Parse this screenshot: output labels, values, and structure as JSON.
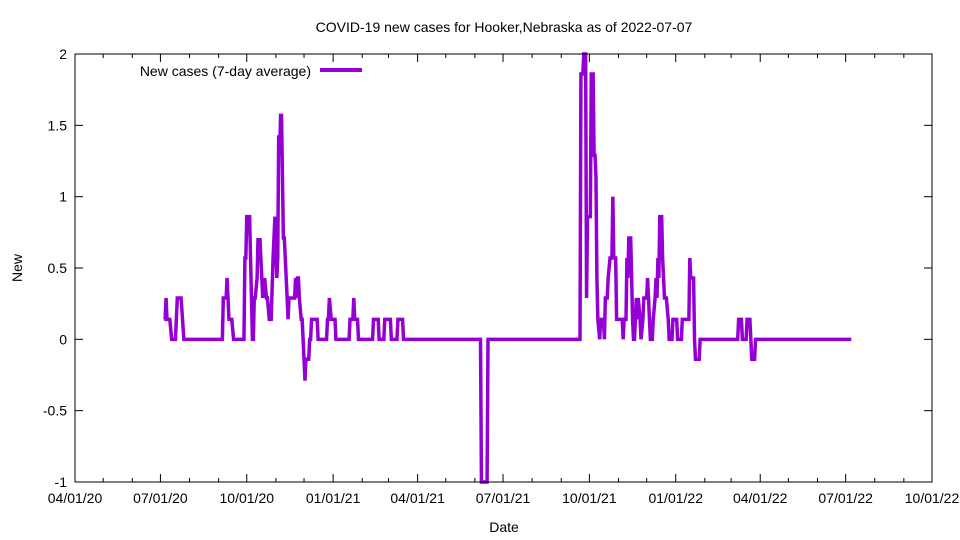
{
  "chart_data": {
    "type": "line",
    "title": "COVID-19 new cases for Hooker,Nebraska as of 2022-07-07",
    "xlabel": "Date",
    "ylabel": "New",
    "xlim": [
      "2020-04-01",
      "2022-10-01"
    ],
    "ylim": [
      -1,
      2
    ],
    "xticks": [
      "2020-04-01",
      "2020-07-01",
      "2020-10-01",
      "2021-01-01",
      "2021-04-01",
      "2021-07-01",
      "2021-10-01",
      "2022-01-01",
      "2022-04-01",
      "2022-07-01",
      "2022-10-01"
    ],
    "xtick_labels": [
      "04/01/20",
      "07/01/20",
      "10/01/20",
      "01/01/21",
      "04/01/21",
      "07/01/21",
      "10/01/21",
      "01/01/22",
      "04/01/22",
      "07/01/22",
      "10/01/22"
    ],
    "yticks": [
      -1,
      -0.5,
      0,
      0.5,
      1,
      1.5,
      2
    ],
    "ytick_labels": [
      "-1",
      "-0.5",
      "0",
      "0.5",
      "1",
      "1.5",
      "2"
    ],
    "grid": false,
    "legend_position": "top-left",
    "series": [
      {
        "name": "New cases (7-day average)",
        "color": "#9400d3",
        "points": [
          [
            "2020-07-05",
            0.14
          ],
          [
            "2020-07-06",
            0.14
          ],
          [
            "2020-07-07",
            0.29
          ],
          [
            "2020-07-08",
            0.14
          ],
          [
            "2020-07-11",
            0.14
          ],
          [
            "2020-07-13",
            0.0
          ],
          [
            "2020-07-17",
            0.0
          ],
          [
            "2020-07-19",
            0.29
          ],
          [
            "2020-07-23",
            0.29
          ],
          [
            "2020-07-26",
            0.0
          ],
          [
            "2020-09-05",
            0.0
          ],
          [
            "2020-09-06",
            0.29
          ],
          [
            "2020-09-09",
            0.29
          ],
          [
            "2020-09-10",
            0.43
          ],
          [
            "2020-09-11",
            0.29
          ],
          [
            "2020-09-12",
            0.14
          ],
          [
            "2020-09-15",
            0.14
          ],
          [
            "2020-09-17",
            0.0
          ],
          [
            "2020-09-28",
            0.0
          ],
          [
            "2020-09-29",
            0.57
          ],
          [
            "2020-09-30",
            0.57
          ],
          [
            "2020-10-01",
            0.86
          ],
          [
            "2020-10-04",
            0.86
          ],
          [
            "2020-10-06",
            0.29
          ],
          [
            "2020-10-07",
            0.0
          ],
          [
            "2020-10-08",
            0.0
          ],
          [
            "2020-10-09",
            0.29
          ],
          [
            "2020-10-10",
            0.29
          ],
          [
            "2020-10-12",
            0.43
          ],
          [
            "2020-10-13",
            0.71
          ],
          [
            "2020-10-14",
            0.57
          ],
          [
            "2020-10-15",
            0.71
          ],
          [
            "2020-10-16",
            0.57
          ],
          [
            "2020-10-18",
            0.29
          ],
          [
            "2020-10-20",
            0.43
          ],
          [
            "2020-10-22",
            0.29
          ],
          [
            "2020-10-23",
            0.29
          ],
          [
            "2020-10-25",
            0.14
          ],
          [
            "2020-10-27",
            0.14
          ],
          [
            "2020-10-29",
            0.57
          ],
          [
            "2020-10-31",
            0.86
          ],
          [
            "2020-11-02",
            0.43
          ],
          [
            "2020-11-03",
            0.57
          ],
          [
            "2020-11-04",
            1.43
          ],
          [
            "2020-11-05",
            1.29
          ],
          [
            "2020-11-06",
            1.57
          ],
          [
            "2020-11-07",
            1.57
          ],
          [
            "2020-11-09",
            0.71
          ],
          [
            "2020-11-10",
            0.71
          ],
          [
            "2020-11-11",
            0.57
          ],
          [
            "2020-11-13",
            0.29
          ],
          [
            "2020-11-14",
            0.14
          ],
          [
            "2020-11-15",
            0.29
          ],
          [
            "2020-11-21",
            0.29
          ],
          [
            "2020-11-22",
            0.43
          ],
          [
            "2020-11-23",
            0.29
          ],
          [
            "2020-11-24",
            0.43
          ],
          [
            "2020-11-25",
            0.43
          ],
          [
            "2020-11-26",
            0.29
          ],
          [
            "2020-11-28",
            0.14
          ],
          [
            "2020-11-29",
            0.14
          ],
          [
            "2020-11-30",
            0.0
          ],
          [
            "2020-12-01",
            -0.14
          ],
          [
            "2020-12-02",
            -0.29
          ],
          [
            "2020-12-03",
            -0.14
          ],
          [
            "2020-12-06",
            -0.14
          ],
          [
            "2020-12-07",
            0.0
          ],
          [
            "2020-12-08",
            0.0
          ],
          [
            "2020-12-09",
            0.14
          ],
          [
            "2020-12-15",
            0.14
          ],
          [
            "2020-12-16",
            0.0
          ],
          [
            "2020-12-25",
            0.0
          ],
          [
            "2020-12-26",
            0.14
          ],
          [
            "2020-12-27",
            0.14
          ],
          [
            "2020-12-28",
            0.29
          ],
          [
            "2020-12-30",
            0.14
          ],
          [
            "2021-01-03",
            0.14
          ],
          [
            "2021-01-04",
            0.0
          ],
          [
            "2021-01-18",
            0.0
          ],
          [
            "2021-01-19",
            0.14
          ],
          [
            "2021-01-22",
            0.14
          ],
          [
            "2021-01-23",
            0.29
          ],
          [
            "2021-01-24",
            0.14
          ],
          [
            "2021-01-27",
            0.14
          ],
          [
            "2021-01-28",
            0.0
          ],
          [
            "2021-02-12",
            0.0
          ],
          [
            "2021-02-13",
            0.14
          ],
          [
            "2021-02-18",
            0.14
          ],
          [
            "2021-02-19",
            0.0
          ],
          [
            "2021-02-24",
            0.0
          ],
          [
            "2021-02-25",
            0.14
          ],
          [
            "2021-03-03",
            0.14
          ],
          [
            "2021-03-04",
            0.0
          ],
          [
            "2021-03-10",
            0.0
          ],
          [
            "2021-03-11",
            0.14
          ],
          [
            "2021-03-16",
            0.14
          ],
          [
            "2021-03-17",
            0.0
          ],
          [
            "2021-06-07",
            0.0
          ],
          [
            "2021-06-08",
            -1.0
          ],
          [
            "2021-06-10",
            -1.0
          ],
          [
            "2021-06-14",
            -1.0
          ],
          [
            "2021-06-15",
            0.0
          ],
          [
            "2021-09-21",
            0.0
          ],
          [
            "2021-09-22",
            1.86
          ],
          [
            "2021-09-24",
            1.86
          ],
          [
            "2021-09-25",
            2.0
          ],
          [
            "2021-09-27",
            2.0
          ],
          [
            "2021-09-28",
            0.29
          ],
          [
            "2021-09-29",
            0.86
          ],
          [
            "2021-10-01",
            0.86
          ],
          [
            "2021-10-02",
            0.86
          ],
          [
            "2021-10-03",
            1.86
          ],
          [
            "2021-10-05",
            1.86
          ],
          [
            "2021-10-06",
            1.29
          ],
          [
            "2021-10-07",
            1.29
          ],
          [
            "2021-10-08",
            1.14
          ],
          [
            "2021-10-09",
            0.43
          ],
          [
            "2021-10-10",
            0.14
          ],
          [
            "2021-10-12",
            0.0
          ],
          [
            "2021-10-13",
            0.14
          ],
          [
            "2021-10-16",
            0.14
          ],
          [
            "2021-10-17",
            0.0
          ],
          [
            "2021-10-18",
            0.29
          ],
          [
            "2021-10-20",
            0.29
          ],
          [
            "2021-10-21",
            0.43
          ],
          [
            "2021-10-23",
            0.57
          ],
          [
            "2021-10-25",
            0.57
          ],
          [
            "2021-10-26",
            1.0
          ],
          [
            "2021-10-27",
            0.57
          ],
          [
            "2021-10-29",
            0.57
          ],
          [
            "2021-10-30",
            0.14
          ],
          [
            "2021-11-05",
            0.14
          ],
          [
            "2021-11-06",
            0.0
          ],
          [
            "2021-11-07",
            0.14
          ],
          [
            "2021-11-09",
            0.14
          ],
          [
            "2021-11-10",
            0.57
          ],
          [
            "2021-11-11",
            0.43
          ],
          [
            "2021-11-12",
            0.71
          ],
          [
            "2021-11-14",
            0.71
          ],
          [
            "2021-11-15",
            0.43
          ],
          [
            "2021-11-16",
            0.14
          ],
          [
            "2021-11-17",
            0.0
          ],
          [
            "2021-11-18",
            0.0
          ],
          [
            "2021-11-19",
            0.14
          ],
          [
            "2021-11-20",
            0.29
          ],
          [
            "2021-11-21",
            0.14
          ],
          [
            "2021-11-22",
            0.29
          ],
          [
            "2021-11-24",
            0.14
          ],
          [
            "2021-11-25",
            0.0
          ],
          [
            "2021-11-27",
            0.14
          ],
          [
            "2021-11-28",
            0.29
          ],
          [
            "2021-12-01",
            0.29
          ],
          [
            "2021-12-02",
            0.43
          ],
          [
            "2021-12-03",
            0.29
          ],
          [
            "2021-12-04",
            0.14
          ],
          [
            "2021-12-05",
            0.0
          ],
          [
            "2021-12-07",
            0.0
          ],
          [
            "2021-12-08",
            0.14
          ],
          [
            "2021-12-10",
            0.29
          ],
          [
            "2021-12-11",
            0.43
          ],
          [
            "2021-12-12",
            0.29
          ],
          [
            "2021-12-13",
            0.57
          ],
          [
            "2021-12-14",
            0.43
          ],
          [
            "2021-12-15",
            0.86
          ],
          [
            "2021-12-17",
            0.86
          ],
          [
            "2021-12-18",
            0.57
          ],
          [
            "2021-12-19",
            0.43
          ],
          [
            "2021-12-20",
            0.29
          ],
          [
            "2021-12-22",
            0.29
          ],
          [
            "2021-12-24",
            0.14
          ],
          [
            "2021-12-25",
            0.0
          ],
          [
            "2021-12-28",
            0.0
          ],
          [
            "2021-12-29",
            0.14
          ],
          [
            "2022-01-02",
            0.14
          ],
          [
            "2022-01-03",
            0.0
          ],
          [
            "2022-01-07",
            0.0
          ],
          [
            "2022-01-08",
            0.14
          ],
          [
            "2022-01-15",
            0.14
          ],
          [
            "2022-01-16",
            0.57
          ],
          [
            "2022-01-17",
            0.43
          ],
          [
            "2022-01-20",
            0.43
          ],
          [
            "2022-01-21",
            0.0
          ],
          [
            "2022-01-22",
            -0.14
          ],
          [
            "2022-01-26",
            -0.14
          ],
          [
            "2022-01-27",
            0.0
          ],
          [
            "2022-03-08",
            0.0
          ],
          [
            "2022-03-09",
            0.14
          ],
          [
            "2022-03-12",
            0.14
          ],
          [
            "2022-03-13",
            0.0
          ],
          [
            "2022-03-17",
            0.0
          ],
          [
            "2022-03-18",
            0.14
          ],
          [
            "2022-03-21",
            0.14
          ],
          [
            "2022-03-22",
            0.0
          ],
          [
            "2022-03-23",
            -0.14
          ],
          [
            "2022-03-26",
            -0.14
          ],
          [
            "2022-03-27",
            0.0
          ],
          [
            "2022-07-07",
            0.0
          ]
        ]
      }
    ]
  }
}
